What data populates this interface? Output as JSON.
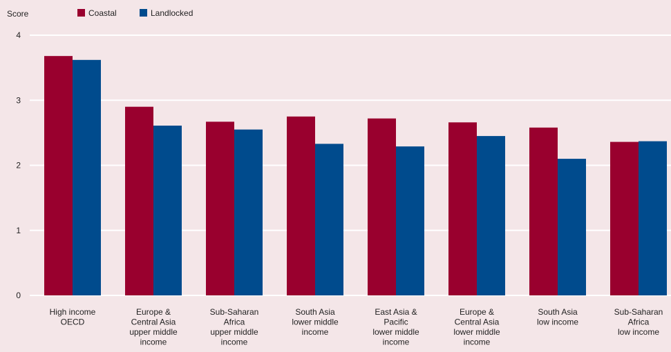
{
  "chart_data": {
    "type": "bar",
    "ylabel": "Score",
    "ylim": [
      0,
      4
    ],
    "yticks": [
      0,
      1,
      2,
      3,
      4
    ],
    "grid": true,
    "legend_position": "top-left",
    "categories": [
      [
        "High income",
        "OECD"
      ],
      [
        "Europe &",
        "Central Asia",
        "upper middle",
        "income"
      ],
      [
        "Sub-Saharan",
        "Africa",
        "upper middle",
        "income"
      ],
      [
        "South Asia",
        "lower middle",
        "income"
      ],
      [
        "East Asia &",
        "Pacific",
        "lower middle",
        "income"
      ],
      [
        "Europe &",
        "Central Asia",
        "lower middle",
        "income"
      ],
      [
        "South Asia",
        "low income"
      ],
      [
        "Sub-Saharan",
        "Africa",
        "low income"
      ]
    ],
    "series": [
      {
        "name": "Coastal",
        "color": "#99002e",
        "values": [
          3.68,
          2.9,
          2.67,
          2.75,
          2.72,
          2.66,
          2.58,
          2.36
        ]
      },
      {
        "name": "Landlocked",
        "color": "#004b8d",
        "values": [
          3.62,
          2.61,
          2.55,
          2.33,
          2.29,
          2.45,
          2.1,
          2.37
        ]
      }
    ]
  },
  "colors": {
    "background": "#f4e6e8",
    "gridline": "#ffffff",
    "text": "#222222"
  }
}
